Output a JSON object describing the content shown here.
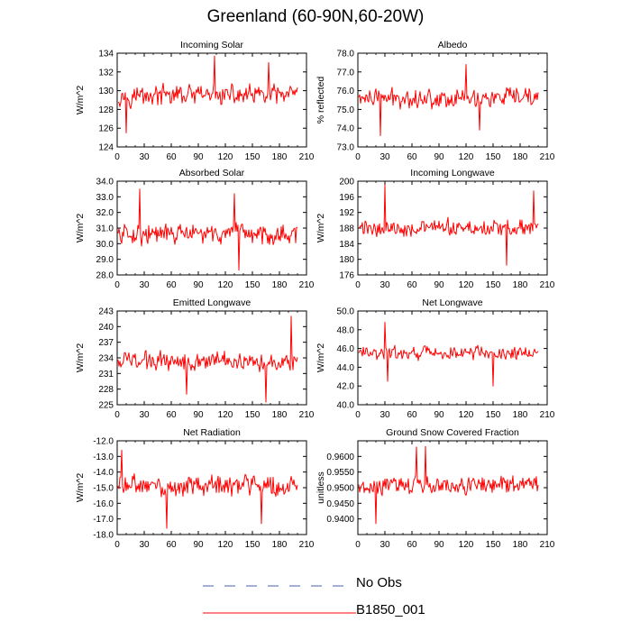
{
  "figure_title": "Greenland (60-90N,60-20W)",
  "legend": {
    "items": [
      {
        "label": "No Obs",
        "style": "dashed",
        "color": "#4a5fb0"
      },
      {
        "label": "B1850_001",
        "style": "solid",
        "color": "#ff0000"
      }
    ]
  },
  "chart_data": [
    {
      "type": "line",
      "title": "Incoming Solar",
      "ylabel": "W/m^2",
      "xlim": [
        0,
        210
      ],
      "xticks": [
        0,
        30,
        60,
        90,
        120,
        150,
        180,
        210
      ],
      "ylim": [
        124,
        134
      ],
      "yticks": [
        "124",
        "126",
        "128",
        "130",
        "132",
        "134"
      ],
      "series": [
        {
          "name": "B1850_001",
          "color": "#ff0000",
          "x_start": 1,
          "x_end": 200,
          "mean": 129.5,
          "amplitude": 1.5,
          "spikes": [
            [
              108,
              133.7
            ],
            [
              10,
              125.5
            ],
            [
              168,
              133
            ]
          ]
        }
      ]
    },
    {
      "type": "line",
      "title": "Albedo",
      "ylabel": "% reflected",
      "xlim": [
        0,
        210
      ],
      "xticks": [
        0,
        30,
        60,
        90,
        120,
        150,
        180,
        210
      ],
      "ylim": [
        73.0,
        78.0
      ],
      "yticks": [
        "73.0",
        "74.0",
        "75.0",
        "76.0",
        "77.0",
        "78.0"
      ],
      "series": [
        {
          "name": "B1850_001",
          "color": "#ff0000",
          "x_start": 1,
          "x_end": 200,
          "mean": 75.6,
          "amplitude": 0.7,
          "spikes": [
            [
              25,
              73.6
            ],
            [
              135,
              73.9
            ],
            [
              120,
              77.4
            ]
          ]
        }
      ]
    },
    {
      "type": "line",
      "title": "Absorbed Solar",
      "ylabel": "W/m^2",
      "xlim": [
        0,
        210
      ],
      "xticks": [
        0,
        30,
        60,
        90,
        120,
        150,
        180,
        210
      ],
      "ylim": [
        28.0,
        34.0
      ],
      "yticks": [
        "28.0",
        "29.0",
        "30.0",
        "31.0",
        "32.0",
        "33.0",
        "34.0"
      ],
      "series": [
        {
          "name": "B1850_001",
          "color": "#ff0000",
          "x_start": 1,
          "x_end": 200,
          "mean": 30.6,
          "amplitude": 0.9,
          "spikes": [
            [
              25,
              33.5
            ],
            [
              135,
              28.3
            ],
            [
              130,
              33.2
            ]
          ]
        }
      ]
    },
    {
      "type": "line",
      "title": "Incoming Longwave",
      "ylabel": "W/m^2",
      "xlim": [
        0,
        210
      ],
      "xticks": [
        0,
        30,
        60,
        90,
        120,
        150,
        180,
        210
      ],
      "ylim": [
        176,
        200
      ],
      "yticks": [
        "176",
        "180",
        "184",
        "188",
        "192",
        "196",
        "200"
      ],
      "series": [
        {
          "name": "B1850_001",
          "color": "#ff0000",
          "x_start": 1,
          "x_end": 200,
          "mean": 188,
          "amplitude": 3,
          "spikes": [
            [
              30,
              199
            ],
            [
              165,
              178.5
            ],
            [
              195,
              197.5
            ]
          ]
        }
      ]
    },
    {
      "type": "line",
      "title": "Emitted Longwave",
      "ylabel": "W/m^2",
      "xlim": [
        0,
        210
      ],
      "xticks": [
        0,
        30,
        60,
        90,
        120,
        150,
        180,
        210
      ],
      "ylim": [
        225,
        243
      ],
      "yticks": [
        "225",
        "228",
        "231",
        "234",
        "237",
        "240",
        "243"
      ],
      "series": [
        {
          "name": "B1850_001",
          "color": "#ff0000",
          "x_start": 1,
          "x_end": 200,
          "mean": 233.5,
          "amplitude": 2.5,
          "spikes": [
            [
              165,
              225.5
            ],
            [
              193,
              242
            ],
            [
              77,
              227
            ]
          ]
        }
      ]
    },
    {
      "type": "line",
      "title": "Net Longwave",
      "ylabel": "W/m^2",
      "xlim": [
        0,
        210
      ],
      "xticks": [
        0,
        30,
        60,
        90,
        120,
        150,
        180,
        210
      ],
      "ylim": [
        40.0,
        50.0
      ],
      "yticks": [
        "40.0",
        "42.0",
        "44.0",
        "46.0",
        "48.0",
        "50.0"
      ],
      "series": [
        {
          "name": "B1850_001",
          "color": "#ff0000",
          "x_start": 1,
          "x_end": 200,
          "mean": 45.5,
          "amplitude": 1.0,
          "spikes": [
            [
              30,
              48.8
            ],
            [
              150,
              42
            ],
            [
              33,
              42.5
            ]
          ]
        }
      ]
    },
    {
      "type": "line",
      "title": "Net Radiation",
      "ylabel": "W/m^2",
      "xlim": [
        0,
        210
      ],
      "xticks": [
        0,
        30,
        60,
        90,
        120,
        150,
        180,
        210
      ],
      "ylim": [
        -18.0,
        -12.0
      ],
      "yticks": [
        "-18.0",
        "-17.0",
        "-16.0",
        "-15.0",
        "-14.0",
        "-13.0",
        "-12.0"
      ],
      "series": [
        {
          "name": "B1850_001",
          "color": "#ff0000",
          "x_start": 1,
          "x_end": 200,
          "mean": -14.9,
          "amplitude": 0.9,
          "spikes": [
            [
              55,
              -17.6
            ],
            [
              5,
              -12.6
            ],
            [
              160,
              -17.3
            ]
          ]
        }
      ]
    },
    {
      "type": "line",
      "title": "Ground Snow Covered Fraction",
      "ylabel": "unitless",
      "xlim": [
        0,
        210
      ],
      "xticks": [
        0,
        30,
        60,
        90,
        120,
        150,
        180,
        210
      ],
      "ylim": [
        0.935,
        0.965
      ],
      "yticks": [
        "0.9400",
        "0.9450",
        "0.9500",
        "0.9550",
        "0.9600"
      ],
      "series": [
        {
          "name": "B1850_001",
          "color": "#ff0000",
          "x_start": 1,
          "x_end": 200,
          "mean": 0.951,
          "amplitude": 0.004,
          "spikes": [
            [
              75,
              0.9632
            ],
            [
              65,
              0.963
            ],
            [
              20,
              0.9385
            ]
          ]
        }
      ]
    }
  ]
}
